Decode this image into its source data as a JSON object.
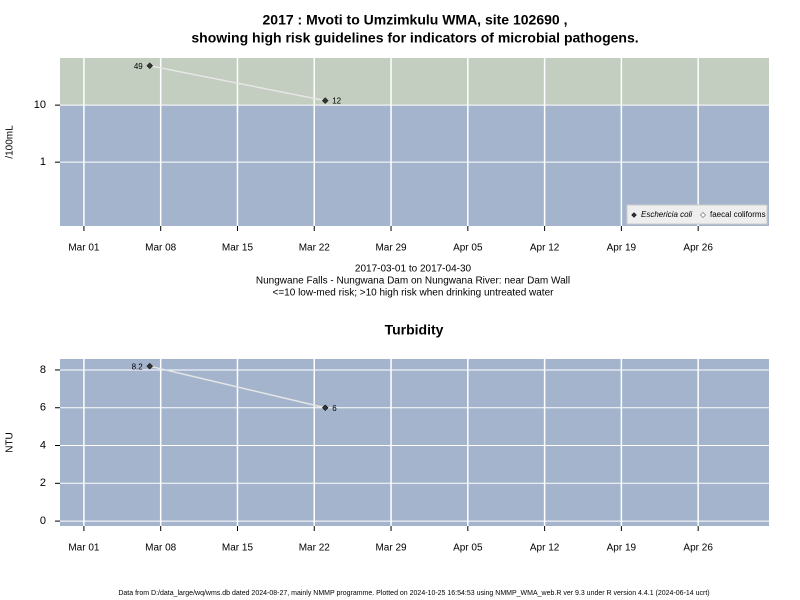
{
  "chart_data": [
    {
      "type": "line",
      "title": "2017 : Mvoti to Umzimkulu WMA, site 102690 ,",
      "subtitle": "showing high risk guidelines for indicators of microbial pathogens.",
      "ylabel": "/100mL",
      "notes": [
        "2017-03-01 to 2017-04-30",
        "Nungwane Falls - Nungwana Dam on Nungwana River: near Dam Wall",
        "<=10 low-med risk; >10 high risk when drinking untreated water"
      ],
      "x": [
        "2017-03-07",
        "2017-03-23"
      ],
      "series": [
        {
          "name": "Eschericia coli",
          "color": "#333333",
          "values": [
            49,
            12
          ]
        },
        {
          "name": "faecal coliforms",
          "color": "#ffffff",
          "values": [
            null,
            null
          ]
        }
      ],
      "log_scale": true,
      "ylim": [
        0.076,
        67
      ],
      "yticks": [
        1,
        10
      ],
      "guideline": 10,
      "background": "#a3b4cc",
      "guideline_color": "#c3cdc0",
      "xlim": [
        "2017-02-26T19:40",
        "2017-05-02T11:00"
      ],
      "xticks": [
        {
          "value": "2017-03-01",
          "label": "Mar 01"
        },
        {
          "value": "2017-03-08",
          "label": "Mar 08"
        },
        {
          "value": "2017-03-15",
          "label": "Mar 15"
        },
        {
          "value": "2017-03-22",
          "label": "Mar 22"
        },
        {
          "value": "2017-03-29",
          "label": "Mar 29"
        },
        {
          "value": "2017-04-05",
          "label": "Apr 05"
        },
        {
          "value": "2017-04-12",
          "label": "Apr 12"
        },
        {
          "value": "2017-04-19",
          "label": "Apr 19"
        },
        {
          "value": "2017-04-26",
          "label": "Apr 26"
        }
      ],
      "grid": true,
      "legend": "bottom-right"
    },
    {
      "type": "line",
      "title": "Turbidity",
      "ylabel": "NTU",
      "x": [
        "2017-03-07",
        "2017-03-23"
      ],
      "series": [
        {
          "name": "Turbidity",
          "color": "#333333",
          "values": [
            8.2,
            6
          ]
        }
      ],
      "log_scale": false,
      "ylim": [
        -0.26,
        8.58
      ],
      "yticks": [
        0,
        2,
        4,
        6,
        8
      ],
      "background": "#a3b4cc",
      "xlim": [
        "2017-02-26T19:40",
        "2017-05-02T11:00"
      ],
      "xticks": [
        {
          "value": "2017-03-01",
          "label": "Mar 01"
        },
        {
          "value": "2017-03-08",
          "label": "Mar 08"
        },
        {
          "value": "2017-03-15",
          "label": "Mar 15"
        },
        {
          "value": "2017-03-22",
          "label": "Mar 22"
        },
        {
          "value": "2017-03-29",
          "label": "Mar 29"
        },
        {
          "value": "2017-04-05",
          "label": "Apr 05"
        },
        {
          "value": "2017-04-12",
          "label": "Apr 12"
        },
        {
          "value": "2017-04-19",
          "label": "Apr 19"
        },
        {
          "value": "2017-04-26",
          "label": "Apr 26"
        }
      ],
      "grid": true
    }
  ],
  "footer": "Data from D:/data_large/wq/wms.db dated 2024-08-27, mainly NMMP programme. Plotted on 2024-10-25 16:54:53 using NMMP_WMA_web.R ver 9.3 under R version 4.4.1 (2024-06-14 ucrt)"
}
